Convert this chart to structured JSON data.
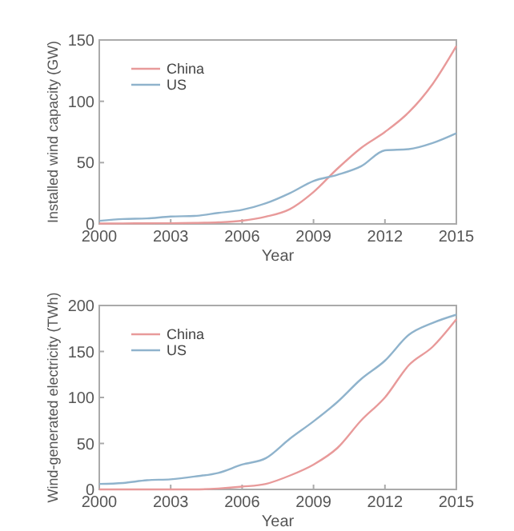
{
  "chart_data": [
    {
      "type": "line",
      "xlabel": "Year",
      "ylabel": "Installed wind capacity (GW)",
      "x": [
        2000,
        2001,
        2002,
        2003,
        2004,
        2005,
        2006,
        2007,
        2008,
        2009,
        2010,
        2011,
        2012,
        2013,
        2014,
        2015
      ],
      "series": [
        {
          "name": "China",
          "color": "#e89a9a",
          "values": [
            0.3,
            0.4,
            0.5,
            0.6,
            0.8,
            1.3,
            2.6,
            5.9,
            12,
            26,
            45,
            62,
            75,
            91,
            114,
            145
          ]
        },
        {
          "name": "US",
          "color": "#8fb3cc",
          "values": [
            2.5,
            4,
            4.5,
            6,
            6.5,
            9,
            11.5,
            16.8,
            25,
            35,
            40,
            47,
            60,
            61,
            66,
            74
          ]
        }
      ],
      "xlim": [
        2000,
        2015
      ],
      "xticks": [
        2000,
        2003,
        2006,
        2009,
        2012,
        2015
      ],
      "ylim": [
        0,
        150
      ],
      "yticks": [
        0,
        50,
        100,
        150
      ],
      "legend": "top left",
      "line_style": "solid"
    },
    {
      "type": "line",
      "xlabel": "Year",
      "ylabel": "Wind-generated electricity (TWh)",
      "x": [
        2000,
        2001,
        2002,
        2003,
        2004,
        2005,
        2006,
        2007,
        2008,
        2009,
        2010,
        2011,
        2012,
        2013,
        2014,
        2015
      ],
      "series": [
        {
          "name": "China",
          "color": "#e89a9a",
          "values": [
            0,
            0,
            0,
            0,
            0,
            1,
            3,
            6,
            15,
            27,
            45,
            75,
            100,
            135,
            155,
            185
          ]
        },
        {
          "name": "US",
          "color": "#8fb3cc",
          "values": [
            6,
            7,
            10,
            11,
            14,
            18,
            27,
            34,
            55,
            74,
            95,
            120,
            140,
            168,
            181,
            190
          ]
        }
      ],
      "xlim": [
        2000,
        2015
      ],
      "xticks": [
        2000,
        2003,
        2006,
        2009,
        2012,
        2015
      ],
      "ylim": [
        0,
        200
      ],
      "yticks": [
        0,
        50,
        100,
        150,
        200
      ],
      "legend": "top left",
      "line_style": "solid"
    }
  ]
}
